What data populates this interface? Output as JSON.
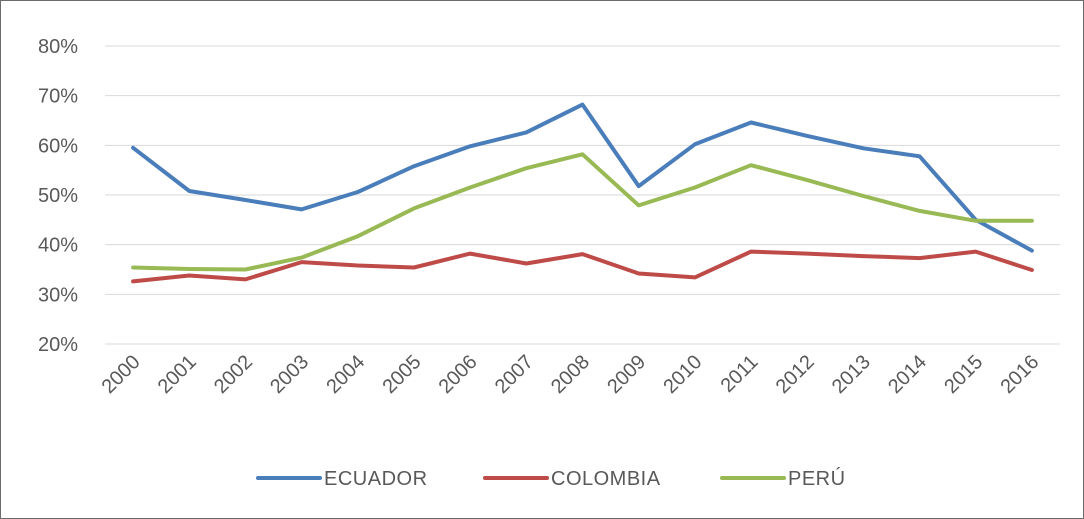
{
  "chart_data": {
    "type": "line",
    "title": "",
    "xlabel": "",
    "ylabel": "",
    "categories": [
      "2000",
      "2001",
      "2002",
      "2003",
      "2004",
      "2005",
      "2006",
      "2007",
      "2008",
      "2009",
      "2010",
      "2011",
      "2012",
      "2013",
      "2014",
      "2015",
      "2016"
    ],
    "ylim": [
      20,
      80
    ],
    "yticks": [
      "20%",
      "30%",
      "40%",
      "50%",
      "60%",
      "70%",
      "80%"
    ],
    "grid": true,
    "legend_position": "bottom",
    "series": [
      {
        "name": "ECUADOR",
        "color": "#4a7ebb",
        "values": [
          59.5,
          50.8,
          49.0,
          47.1,
          50.6,
          55.8,
          59.8,
          62.6,
          68.2,
          51.8,
          60.2,
          64.6,
          61.9,
          59.4,
          57.8,
          45.0,
          38.8
        ]
      },
      {
        "name": "COLOMBIA",
        "color": "#be4b48",
        "values": [
          32.6,
          33.8,
          33.0,
          36.5,
          35.8,
          35.4,
          38.2,
          36.2,
          38.1,
          34.2,
          33.4,
          38.6,
          38.2,
          37.7,
          37.3,
          38.6,
          34.9
        ]
      },
      {
        "name": "PERÚ",
        "color": "#98b954",
        "values": [
          35.4,
          35.1,
          35.0,
          37.4,
          41.7,
          47.3,
          51.5,
          55.4,
          58.2,
          47.9,
          51.5,
          56.0,
          53.0,
          49.8,
          46.8,
          44.8,
          44.8
        ]
      }
    ]
  }
}
